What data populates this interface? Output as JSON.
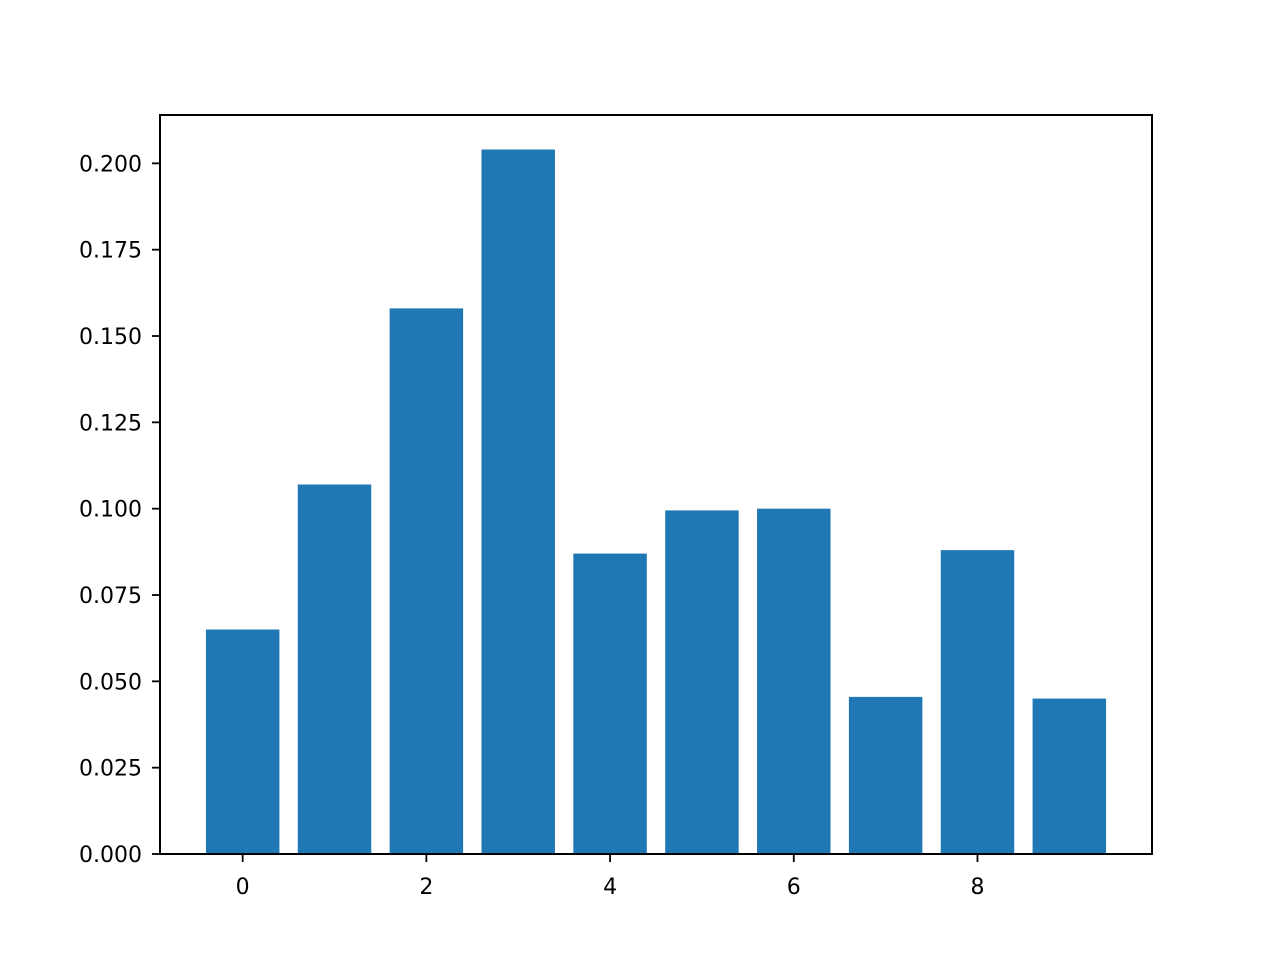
{
  "chart_data": {
    "type": "bar",
    "title": "",
    "xlabel": "",
    "ylabel": "",
    "x": [
      0,
      1,
      2,
      3,
      4,
      5,
      6,
      7,
      8,
      9
    ],
    "values": [
      0.065,
      0.107,
      0.158,
      0.204,
      0.087,
      0.0995,
      0.1,
      0.0455,
      0.088,
      0.045
    ],
    "bar_width": 0.8,
    "xlim": [
      -0.9,
      9.9
    ],
    "ylim": [
      0,
      0.214
    ],
    "x_ticks": [
      0,
      2,
      4,
      6,
      8
    ],
    "x_tick_labels": [
      "0",
      "2",
      "4",
      "6",
      "8"
    ],
    "y_ticks": [
      0,
      0.025,
      0.05,
      0.075,
      0.1,
      0.125,
      0.15,
      0.175,
      0.2
    ],
    "y_tick_labels": [
      "0.000",
      "0.025",
      "0.050",
      "0.075",
      "0.100",
      "0.125",
      "0.150",
      "0.175",
      "0.200"
    ],
    "grid": false,
    "legend": "none",
    "bar_color": "#1f77b4"
  }
}
